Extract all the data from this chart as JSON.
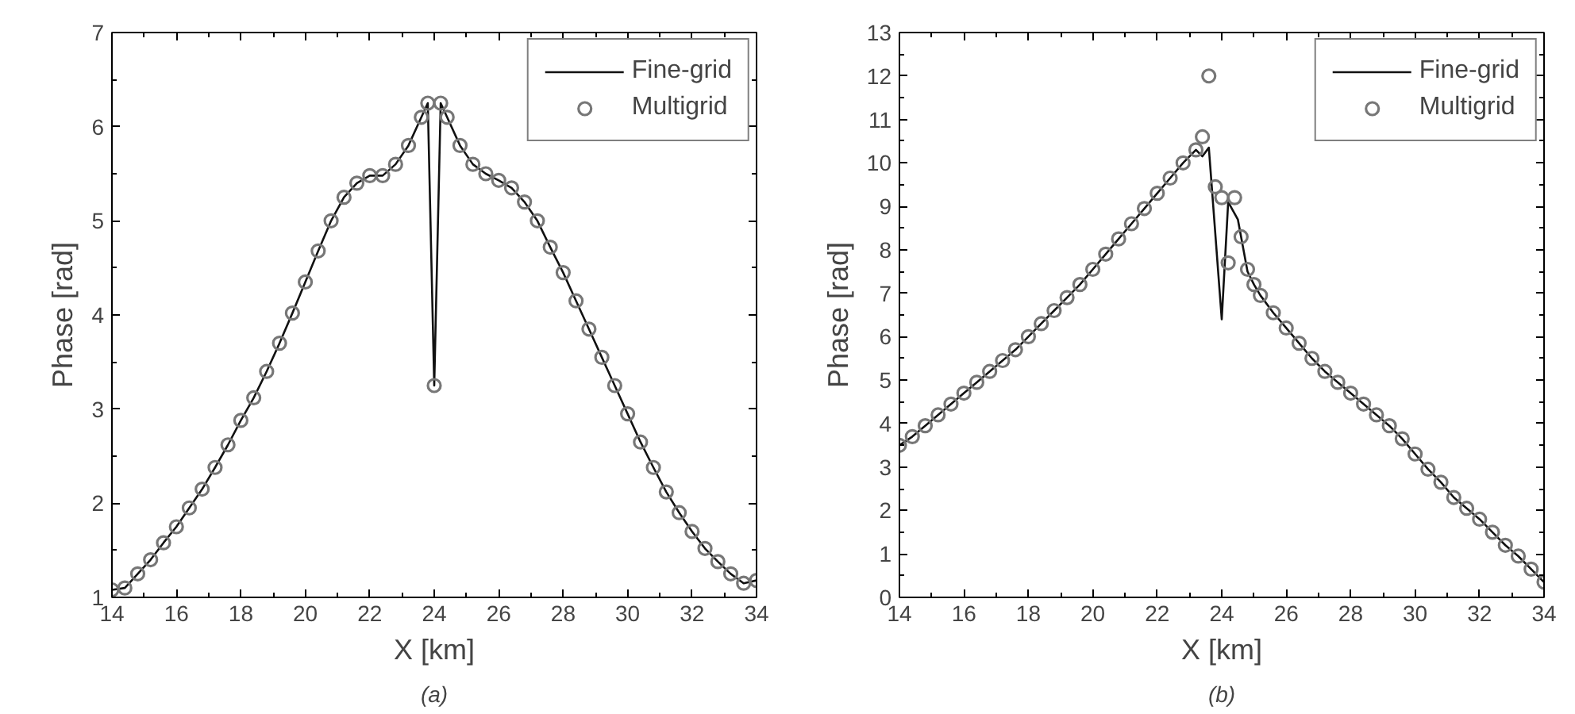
{
  "chart_data": [
    {
      "type": "line",
      "xlabel": "X [km]",
      "ylabel": "Phase [rad]",
      "annotations": [
        "(a)"
      ],
      "xlim": [
        14,
        34
      ],
      "ylim": [
        1,
        7
      ],
      "xticks": [
        14,
        16,
        18,
        20,
        22,
        24,
        26,
        28,
        30,
        32,
        34
      ],
      "yticks": [
        1,
        2,
        3,
        4,
        5,
        6,
        7
      ],
      "grid": false,
      "legend": "top right",
      "series": [
        {
          "name": "Fine-grid",
          "color": "#111111",
          "line_style": "solid",
          "x": [
            14,
            14.4,
            14.8,
            15.2,
            15.6,
            16,
            16.4,
            16.8,
            17.2,
            17.6,
            18,
            18.4,
            18.8,
            19.2,
            19.6,
            20,
            20.4,
            20.8,
            21.2,
            21.6,
            22,
            22.4,
            22.8,
            23.2,
            23.6,
            23.8,
            24,
            24.2,
            24.4,
            24.8,
            25.2,
            25.6,
            26,
            26.4,
            26.8,
            27.2,
            27.6,
            28,
            28.4,
            28.8,
            29.2,
            29.6,
            30,
            30.4,
            30.8,
            31.2,
            31.6,
            32,
            32.4,
            32.8,
            33.2,
            33.6,
            34
          ],
          "values": [
            1.08,
            1.1,
            1.25,
            1.4,
            1.58,
            1.75,
            1.95,
            2.15,
            2.38,
            2.62,
            2.88,
            3.12,
            3.4,
            3.7,
            4.02,
            4.35,
            4.68,
            5.0,
            5.25,
            5.4,
            5.48,
            5.48,
            5.6,
            5.8,
            6.1,
            6.25,
            3.25,
            6.25,
            6.1,
            5.8,
            5.6,
            5.5,
            5.43,
            5.35,
            5.2,
            5.0,
            4.72,
            4.45,
            4.15,
            3.85,
            3.55,
            3.25,
            2.95,
            2.65,
            2.38,
            2.12,
            1.9,
            1.7,
            1.52,
            1.38,
            1.25,
            1.15,
            1.18
          ]
        },
        {
          "name": "Multigrid",
          "type": "scatter",
          "color": "#777777",
          "marker": "circle",
          "x": [
            14,
            14.4,
            14.8,
            15.2,
            15.6,
            16,
            16.4,
            16.8,
            17.2,
            17.6,
            18,
            18.4,
            18.8,
            19.2,
            19.6,
            20,
            20.4,
            20.8,
            21.2,
            21.6,
            22,
            22.4,
            22.8,
            23.2,
            23.6,
            23.8,
            24,
            24.2,
            24.4,
            24.8,
            25.2,
            25.6,
            26,
            26.4,
            26.8,
            27.2,
            27.6,
            28,
            28.4,
            28.8,
            29.2,
            29.6,
            30,
            30.4,
            30.8,
            31.2,
            31.6,
            32,
            32.4,
            32.8,
            33.2,
            33.6,
            34
          ],
          "values": [
            1.08,
            1.1,
            1.25,
            1.4,
            1.58,
            1.75,
            1.95,
            2.15,
            2.38,
            2.62,
            2.88,
            3.12,
            3.4,
            3.7,
            4.02,
            4.35,
            4.68,
            5.0,
            5.25,
            5.4,
            5.48,
            5.48,
            5.6,
            5.8,
            6.1,
            6.25,
            3.25,
            6.25,
            6.1,
            5.8,
            5.6,
            5.5,
            5.43,
            5.35,
            5.2,
            5.0,
            4.72,
            4.45,
            4.15,
            3.85,
            3.55,
            3.25,
            2.95,
            2.65,
            2.38,
            2.12,
            1.9,
            1.7,
            1.52,
            1.38,
            1.25,
            1.15,
            1.18
          ]
        }
      ]
    },
    {
      "type": "line",
      "xlabel": "X [km]",
      "ylabel": "Phase [rad]",
      "annotations": [
        "(b)"
      ],
      "xlim": [
        14,
        34
      ],
      "ylim": [
        0,
        13
      ],
      "xticks": [
        14,
        16,
        18,
        20,
        22,
        24,
        26,
        28,
        30,
        32,
        34
      ],
      "yticks": [
        0,
        1,
        2,
        3,
        4,
        5,
        6,
        7,
        8,
        9,
        10,
        11,
        12,
        13
      ],
      "grid": false,
      "legend": "top right",
      "series": [
        {
          "name": "Fine-grid",
          "color": "#111111",
          "line_style": "solid",
          "x": [
            14,
            14.4,
            14.8,
            15.2,
            15.6,
            16,
            16.4,
            16.8,
            17.2,
            17.6,
            18,
            18.4,
            18.8,
            19.2,
            19.6,
            20,
            20.4,
            20.8,
            21.2,
            21.6,
            22,
            22.4,
            22.8,
            23.2,
            23.4,
            23.6,
            24,
            24.2,
            24.5,
            24.8,
            25,
            25.2,
            25.6,
            26,
            26.4,
            26.8,
            27.2,
            27.6,
            28,
            28.4,
            28.8,
            29.2,
            29.6,
            30,
            30.4,
            30.8,
            31.2,
            31.6,
            32,
            32.4,
            32.8,
            33.2,
            33.6,
            34
          ],
          "values": [
            3.5,
            3.7,
            3.95,
            4.2,
            4.45,
            4.7,
            4.95,
            5.2,
            5.45,
            5.7,
            6.0,
            6.3,
            6.6,
            6.9,
            7.2,
            7.55,
            7.9,
            8.25,
            8.6,
            8.95,
            9.3,
            9.65,
            10.0,
            10.3,
            10.15,
            10.35,
            6.4,
            9.1,
            8.7,
            7.5,
            7.2,
            6.95,
            6.55,
            6.2,
            5.85,
            5.5,
            5.2,
            4.95,
            4.7,
            4.45,
            4.2,
            3.95,
            3.65,
            3.3,
            2.95,
            2.65,
            2.3,
            2.05,
            1.8,
            1.5,
            1.2,
            0.95,
            0.65,
            0.35
          ]
        },
        {
          "name": "Multigrid",
          "type": "scatter",
          "color": "#777777",
          "marker": "circle",
          "x": [
            14,
            14.4,
            14.8,
            15.2,
            15.6,
            16,
            16.4,
            16.8,
            17.2,
            17.6,
            18,
            18.4,
            18.8,
            19.2,
            19.6,
            20,
            20.4,
            20.8,
            21.2,
            21.6,
            22,
            22.4,
            22.8,
            23.2,
            23.4,
            23.6,
            23.8,
            24,
            24.2,
            24.4,
            24.6,
            24.8,
            25,
            25.2,
            25.6,
            26,
            26.4,
            26.8,
            27.2,
            27.6,
            28,
            28.4,
            28.8,
            29.2,
            29.6,
            30,
            30.4,
            30.8,
            31.2,
            31.6,
            32,
            32.4,
            32.8,
            33.2,
            33.6,
            34
          ],
          "values": [
            3.5,
            3.7,
            3.95,
            4.2,
            4.45,
            4.7,
            4.95,
            5.2,
            5.45,
            5.7,
            6.0,
            6.3,
            6.6,
            6.9,
            7.2,
            7.55,
            7.9,
            8.25,
            8.6,
            8.95,
            9.3,
            9.65,
            10.0,
            10.3,
            10.6,
            12.0,
            9.45,
            9.2,
            7.7,
            9.2,
            8.3,
            7.55,
            7.2,
            6.95,
            6.55,
            6.2,
            5.85,
            5.5,
            5.2,
            4.95,
            4.7,
            4.45,
            4.2,
            3.95,
            3.65,
            3.3,
            2.95,
            2.65,
            2.3,
            2.05,
            1.8,
            1.5,
            1.2,
            0.95,
            0.65,
            0.35
          ]
        }
      ]
    }
  ]
}
